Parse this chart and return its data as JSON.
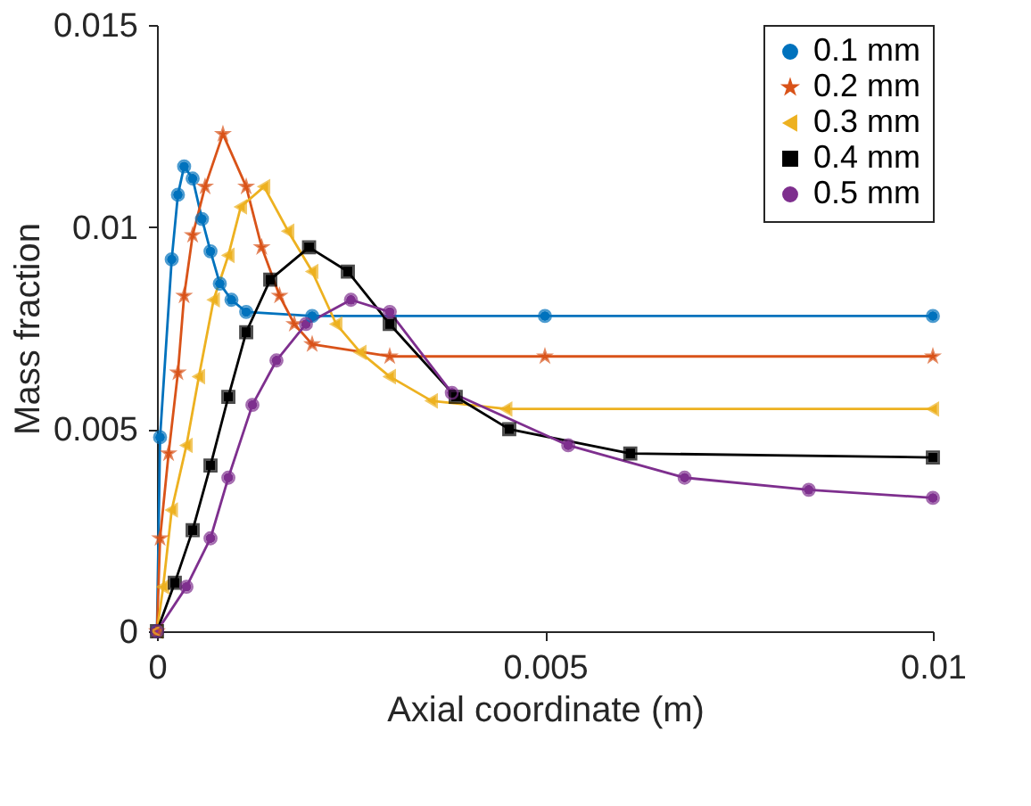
{
  "chart_data": {
    "type": "line",
    "xlabel": "Axial coordinate (m)",
    "ylabel": "Mass fraction",
    "xlim": [
      0,
      0.01
    ],
    "xticks": [
      0,
      0.005,
      0.01
    ],
    "ylim": [
      0,
      0.015
    ],
    "yticks": [
      0,
      0.005,
      0.01,
      0.015
    ],
    "grid": false,
    "legend": "top right",
    "line_style": "solid",
    "series": [
      {
        "name": "0.1 mm",
        "color": "#0072bd",
        "marker": "circle",
        "x": [
          0,
          4e-05,
          0.00019,
          0.00027,
          0.00035,
          0.00046,
          0.00058,
          0.00069,
          0.00081,
          0.00096,
          0.00115,
          0.002,
          0.005,
          0.01
        ],
        "values": [
          0,
          0.0048,
          0.0092,
          0.0108,
          0.0115,
          0.0112,
          0.0102,
          0.0094,
          0.0086,
          0.0082,
          0.0079,
          0.0078,
          0.0078,
          0.0078
        ]
      },
      {
        "name": "0.2 mm",
        "color": "#d95319",
        "marker": "star",
        "x": [
          0,
          4e-05,
          0.00015,
          0.00027,
          0.00035,
          0.00046,
          0.00062,
          0.00085,
          0.00115,
          0.00135,
          0.00158,
          0.00177,
          0.002,
          0.003,
          0.005,
          0.01
        ],
        "values": [
          0,
          0.0023,
          0.0044,
          0.0064,
          0.0083,
          0.0098,
          0.011,
          0.0123,
          0.011,
          0.0095,
          0.0083,
          0.0076,
          0.0071,
          0.0068,
          0.0068,
          0.0068
        ]
      },
      {
        "name": "0.3 mm",
        "color": "#edb120",
        "marker": "triangle",
        "x": [
          0,
          8e-05,
          0.00019,
          0.00038,
          0.00054,
          0.00073,
          0.00092,
          0.00108,
          0.00138,
          0.00169,
          0.002,
          0.00231,
          0.00262,
          0.003,
          0.00354,
          0.0045,
          0.01
        ],
        "values": [
          0,
          0.0011,
          0.003,
          0.0046,
          0.0063,
          0.0082,
          0.0093,
          0.0105,
          0.011,
          0.0099,
          0.0089,
          0.0076,
          0.0069,
          0.0063,
          0.0057,
          0.0055,
          0.0055
        ]
      },
      {
        "name": "0.4 mm",
        "color": "#000000",
        "marker": "square",
        "x": [
          0,
          0.00023,
          0.00046,
          0.00069,
          0.00092,
          0.00115,
          0.00146,
          0.00196,
          0.00246,
          0.003,
          0.00385,
          0.00454,
          0.0061,
          0.01
        ],
        "values": [
          0,
          0.0012,
          0.0025,
          0.0041,
          0.0058,
          0.0074,
          0.0087,
          0.0095,
          0.0089,
          0.0076,
          0.0058,
          0.005,
          0.0044,
          0.0043
        ]
      },
      {
        "name": "0.5 mm",
        "color": "#7e2f8e",
        "marker": "circle",
        "x": [
          0,
          0.00038,
          0.00069,
          0.00092,
          0.00123,
          0.00154,
          0.00192,
          0.0025,
          0.003,
          0.0038,
          0.0053,
          0.0068,
          0.0084,
          0.01
        ],
        "values": [
          0,
          0.0011,
          0.0023,
          0.0038,
          0.0056,
          0.0067,
          0.0076,
          0.0082,
          0.0079,
          0.0059,
          0.0046,
          0.0038,
          0.0035,
          0.0033
        ]
      }
    ]
  }
}
